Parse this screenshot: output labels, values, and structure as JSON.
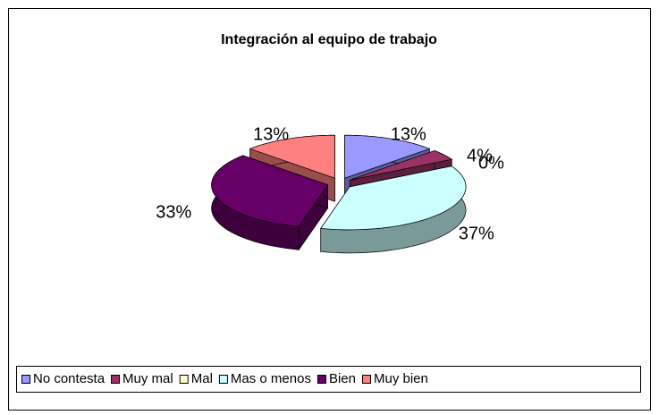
{
  "chart_data": {
    "type": "pie",
    "title": "Integración al equipo de trabajo",
    "categories": [
      "No contesta",
      "Muy mal",
      "Mal",
      "Mas o menos",
      "Bien",
      "Muy bien"
    ],
    "values": [
      13,
      4,
      0,
      37,
      33,
      13
    ],
    "value_labels": [
      "13%",
      "4%",
      "0%",
      "37%",
      "33%",
      "13%"
    ],
    "colors": [
      "#9999ff",
      "#993366",
      "#ffffcc",
      "#ccffff",
      "#660066",
      "#ff8080"
    ],
    "legend": "bottom"
  }
}
